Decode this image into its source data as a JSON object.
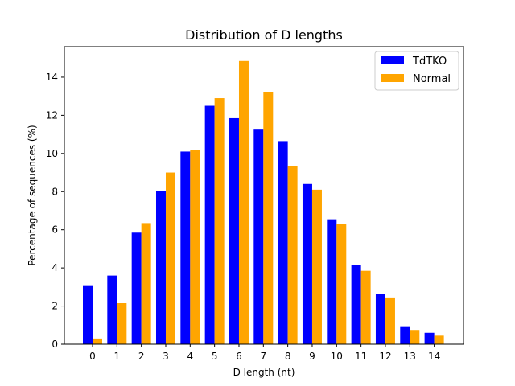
{
  "chart_data": {
    "type": "bar",
    "title": "Distribution of D lengths",
    "xlabel": "D length (nt)",
    "ylabel": "Percentage of sequences (%)",
    "categories": [
      "0",
      "1",
      "2",
      "3",
      "4",
      "5",
      "6",
      "7",
      "8",
      "9",
      "10",
      "11",
      "12",
      "13",
      "14"
    ],
    "series": [
      {
        "name": "TdTKO",
        "color": "#0000ff",
        "values": [
          3.05,
          3.6,
          5.85,
          8.05,
          10.1,
          12.5,
          11.85,
          11.25,
          10.65,
          8.4,
          6.55,
          4.15,
          2.65,
          0.9,
          0.6
        ]
      },
      {
        "name": "Normal",
        "color": "#ffa500",
        "values": [
          0.3,
          2.15,
          6.35,
          9.0,
          10.2,
          12.9,
          14.85,
          13.2,
          9.35,
          8.1,
          6.3,
          3.85,
          2.45,
          0.75,
          0.45
        ]
      }
    ],
    "ylim": [
      0,
      15.6
    ],
    "yticks": [
      "0",
      "2",
      "4",
      "6",
      "8",
      "10",
      "12",
      "14"
    ],
    "legend_position": "top-right",
    "grid": false
  }
}
